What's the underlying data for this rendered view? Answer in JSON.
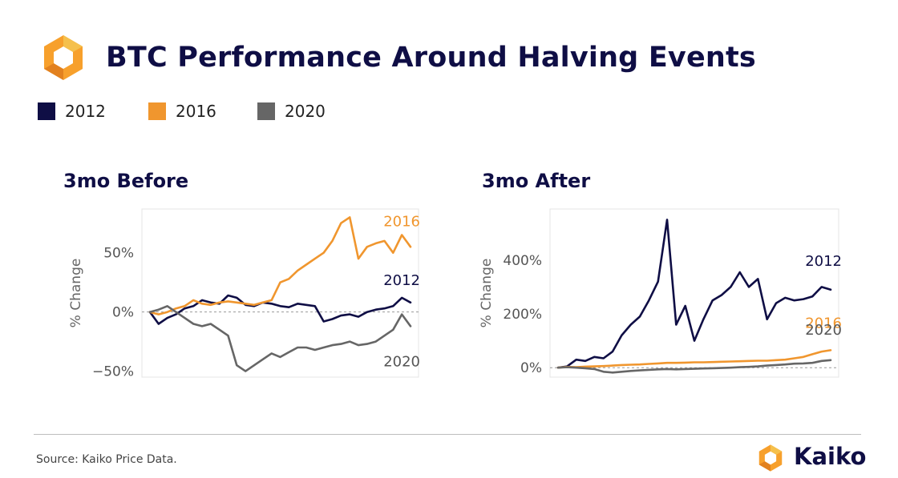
{
  "header": {
    "title": "BTC Performance Around Halving Events",
    "logo_icon": "kaiko-hexagon-icon"
  },
  "legend": [
    {
      "label": "2012",
      "color": "#0f0e45"
    },
    {
      "label": "2016",
      "color": "#f0962e"
    },
    {
      "label": "2020",
      "color": "#666666"
    }
  ],
  "footer": {
    "source": "Source: Kaiko Price Data.",
    "brand": "Kaiko",
    "brand_icon": "kaiko-hexagon-icon"
  },
  "chart_data": [
    {
      "type": "line",
      "title": "3mo Before",
      "xlabel": "",
      "ylabel": "% Change",
      "yticks": [
        "50%",
        "0%",
        "−50%"
      ],
      "ytick_values": [
        50,
        0,
        -50
      ],
      "ylim": [
        -55,
        87
      ],
      "x": [
        0,
        3,
        6,
        9,
        12,
        15,
        18,
        21,
        24,
        27,
        30,
        33,
        36,
        39,
        42,
        45,
        48,
        51,
        54,
        57,
        60,
        63,
        66,
        69,
        72,
        75,
        78,
        81,
        84,
        87,
        90
      ],
      "grid": false,
      "zero_line": true,
      "series": [
        {
          "name": "2012",
          "color": "#0f0e45",
          "values": [
            0,
            -10,
            -5,
            -2,
            3,
            5,
            10,
            8,
            7,
            14,
            12,
            6,
            5,
            8,
            7,
            5,
            4,
            7,
            6,
            5,
            -8,
            -6,
            -3,
            -2,
            -4,
            0,
            2,
            3,
            5,
            12,
            8
          ],
          "end_label": "2012"
        },
        {
          "name": "2016",
          "color": "#f0962e",
          "values": [
            0,
            -2,
            0,
            3,
            5,
            10,
            7,
            6,
            8,
            9,
            8,
            7,
            6,
            8,
            10,
            25,
            28,
            35,
            40,
            45,
            50,
            60,
            75,
            80,
            45,
            55,
            58,
            60,
            50,
            65,
            55
          ],
          "end_label": "2016"
        },
        {
          "name": "2020",
          "color": "#666666",
          "values": [
            0,
            2,
            5,
            0,
            -5,
            -10,
            -12,
            -10,
            -15,
            -20,
            -45,
            -50,
            -45,
            -40,
            -35,
            -38,
            -34,
            -30,
            -30,
            -32,
            -30,
            -28,
            -27,
            -25,
            -28,
            -27,
            -25,
            -20,
            -15,
            -2,
            -12
          ],
          "end_label": "2020"
        }
      ]
    },
    {
      "type": "line",
      "title": "3mo After",
      "xlabel": "",
      "ylabel": "% Change",
      "yticks": [
        "400%",
        "200%",
        "0%"
      ],
      "ytick_values": [
        400,
        200,
        0
      ],
      "ylim": [
        -35,
        590
      ],
      "x": [
        0,
        3,
        6,
        9,
        12,
        15,
        18,
        21,
        24,
        27,
        30,
        33,
        36,
        39,
        42,
        45,
        48,
        51,
        54,
        57,
        60,
        63,
        66,
        69,
        72,
        75,
        78,
        81,
        84,
        87,
        90
      ],
      "grid": false,
      "zero_line": true,
      "series": [
        {
          "name": "2012",
          "color": "#0f0e45",
          "values": [
            0,
            5,
            30,
            25,
            40,
            35,
            60,
            120,
            160,
            190,
            250,
            320,
            550,
            160,
            230,
            100,
            180,
            250,
            270,
            300,
            355,
            300,
            330,
            180,
            240,
            260,
            250,
            255,
            265,
            300,
            290
          ],
          "end_label": "2012"
        },
        {
          "name": "2016",
          "color": "#f0962e",
          "values": [
            0,
            3,
            2,
            4,
            5,
            6,
            8,
            10,
            11,
            12,
            14,
            16,
            18,
            18,
            19,
            20,
            20,
            21,
            22,
            23,
            24,
            25,
            26,
            26,
            28,
            30,
            35,
            40,
            50,
            60,
            65
          ],
          "end_label": "2016"
        },
        {
          "name": "2020",
          "color": "#666666",
          "values": [
            0,
            2,
            0,
            -2,
            -5,
            -15,
            -18,
            -15,
            -12,
            -10,
            -8,
            -6,
            -5,
            -6,
            -5,
            -4,
            -3,
            -2,
            -1,
            0,
            2,
            3,
            5,
            8,
            10,
            12,
            15,
            16,
            18,
            25,
            28
          ],
          "end_label": "2020"
        }
      ]
    }
  ]
}
